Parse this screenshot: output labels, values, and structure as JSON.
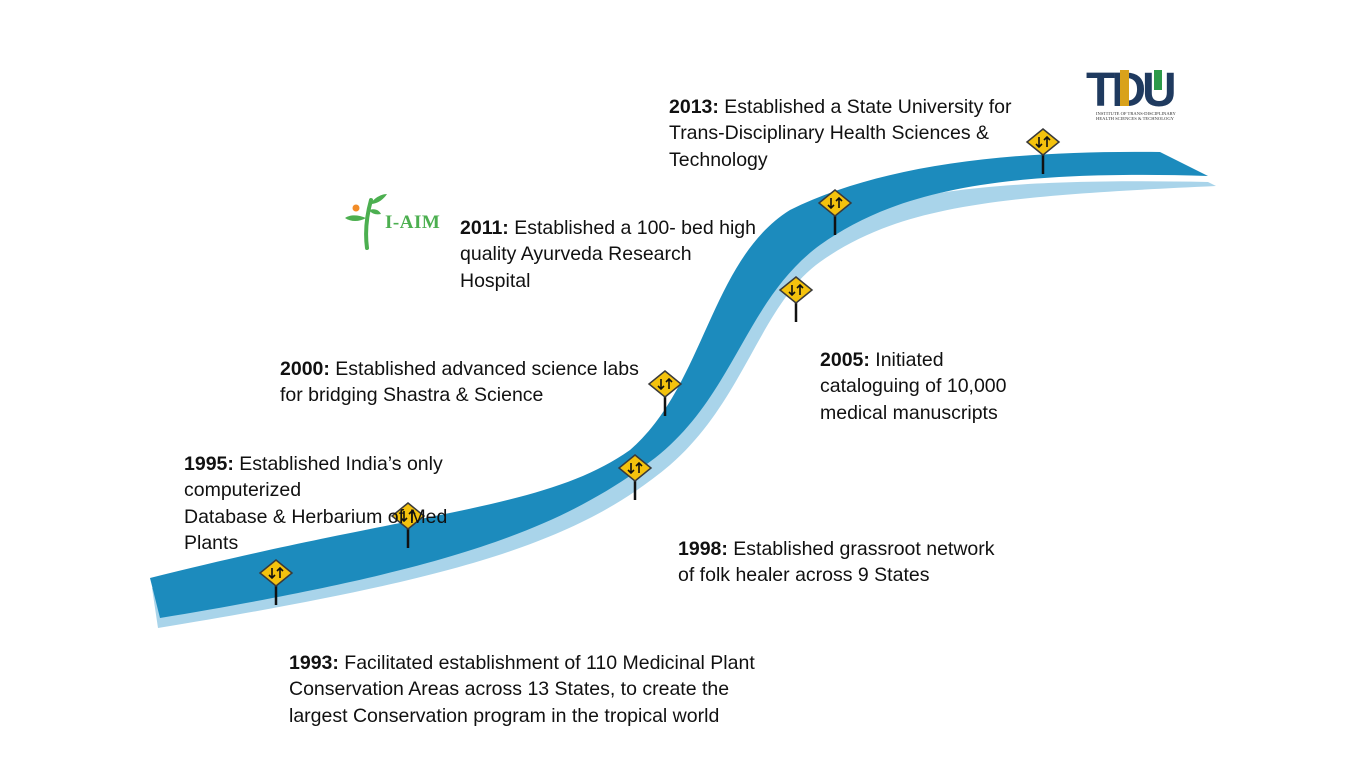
{
  "milestones": [
    {
      "year": "2013:",
      "text": " Established  a State University for\nTrans-Disciplinary Health Sciences &\nTechnology"
    },
    {
      "year": "2011:",
      "text": " Established a 100- bed  high\nquality Ayurveda Research\nHospital"
    },
    {
      "year": "2000:",
      "text": " Established advanced science labs\nfor bridging Shastra & Science"
    },
    {
      "year": "2005:",
      "text": " Initiated\ncataloguing of 10,000\nmedical manuscripts"
    },
    {
      "year": "1995:",
      "text": " Established India’s only\ncomputerized\nDatabase & Herbarium of Med\nPlants"
    },
    {
      "year": "1998:",
      "text": " Established grassroot network\nof folk healer across 9 States"
    },
    {
      "year": "1993:",
      "text": " Facilitated establishment  of 110 Medicinal Plant\nConservation Areas across 13 States, to create the\nlargest Conservation program in the tropical world"
    }
  ],
  "logos": {
    "iaim": {
      "text": "I-AIM",
      "icon": "iaim-plant-icon"
    },
    "tdu": {
      "text": "TDU",
      "subtitle": "Institute of Trans-Disciplinary Health Sciences & Technology",
      "icon": "tdu-logo-icon"
    }
  },
  "colors": {
    "road": "#1c8bbd",
    "road_shadow": "#a9d4ea",
    "sign_fill": "#f4c20d",
    "sign_border": "#3a3a3a",
    "post": "#111111",
    "iaim_green": "#4caf50",
    "iaim_orange": "#f28c28",
    "tdu_navy": "#1f3a5f",
    "tdu_gold": "#d9a21b",
    "tdu_green": "#2e9a4a"
  }
}
